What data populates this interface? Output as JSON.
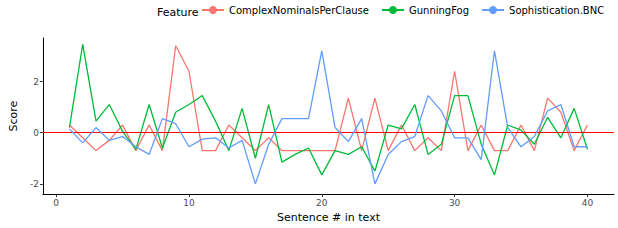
{
  "chart_data": {
    "type": "line",
    "x_label": "Sentence # in text",
    "y_label": "Score",
    "legend": "top",
    "legend_title": "Feature",
    "grid": false,
    "xlim": [
      -1,
      42
    ],
    "xticks": [
      0,
      10,
      20,
      30,
      40
    ],
    "ylim": [
      -2.4,
      3.7
    ],
    "yticks": [
      -2,
      0,
      2
    ],
    "reference_line": {
      "value": 0,
      "color": "#ff0000"
    },
    "x": [
      1,
      2,
      3,
      4,
      5,
      6,
      7,
      8,
      9,
      10,
      11,
      12,
      13,
      14,
      15,
      16,
      17,
      18,
      19,
      20,
      21,
      22,
      23,
      24,
      25,
      26,
      27,
      28,
      29,
      30,
      31,
      32,
      33,
      34,
      35,
      36,
      37,
      38,
      39,
      40
    ],
    "series": [
      {
        "name": "ComplexNominalsPerClause",
        "color": "#F8766D",
        "values": [
          0.3,
          -0.2,
          -0.7,
          -0.3,
          0.3,
          -0.7,
          0.3,
          -0.7,
          3.4,
          2.4,
          -0.7,
          -0.7,
          0.3,
          -0.2,
          -0.7,
          -0.2,
          -0.7,
          -0.7,
          -0.7,
          -0.7,
          -0.7,
          1.35,
          -0.7,
          1.35,
          -0.7,
          0.3,
          -0.7,
          -0.2,
          -0.7,
          2.4,
          -0.7,
          0.3,
          -0.7,
          -0.7,
          0.3,
          -0.7,
          1.35,
          0.8,
          -0.7,
          0.3
        ]
      },
      {
        "name": "GunningFog",
        "color": "#00BA38",
        "values": [
          0.2,
          3.45,
          0.45,
          1.1,
          0.05,
          -0.65,
          1.1,
          -0.6,
          0.8,
          1.1,
          1.45,
          0.45,
          -0.7,
          0.95,
          -1.0,
          1.1,
          -1.15,
          -0.85,
          -0.6,
          -1.65,
          -0.7,
          -0.85,
          -0.55,
          -1.5,
          0.3,
          0.15,
          1.1,
          -0.85,
          -0.45,
          1.45,
          1.45,
          -0.45,
          -1.65,
          0.3,
          0.1,
          -0.45,
          0.6,
          -0.2,
          0.95,
          -0.65
        ]
      },
      {
        "name": "Sophistication.BNC",
        "color": "#619CFF",
        "values": [
          0.15,
          -0.4,
          0.2,
          -0.3,
          -0.15,
          -0.55,
          -0.85,
          0.55,
          0.35,
          -0.55,
          -0.25,
          -0.2,
          -0.6,
          -0.3,
          -2.0,
          -0.45,
          0.55,
          0.55,
          0.55,
          3.2,
          0.2,
          -0.35,
          0.55,
          -2.0,
          -0.85,
          -0.35,
          -0.15,
          1.45,
          0.85,
          -0.2,
          -0.2,
          -1.05,
          3.2,
          0.2,
          -0.55,
          -0.15,
          0.85,
          1.1,
          -0.55,
          -0.55
        ]
      }
    ]
  }
}
